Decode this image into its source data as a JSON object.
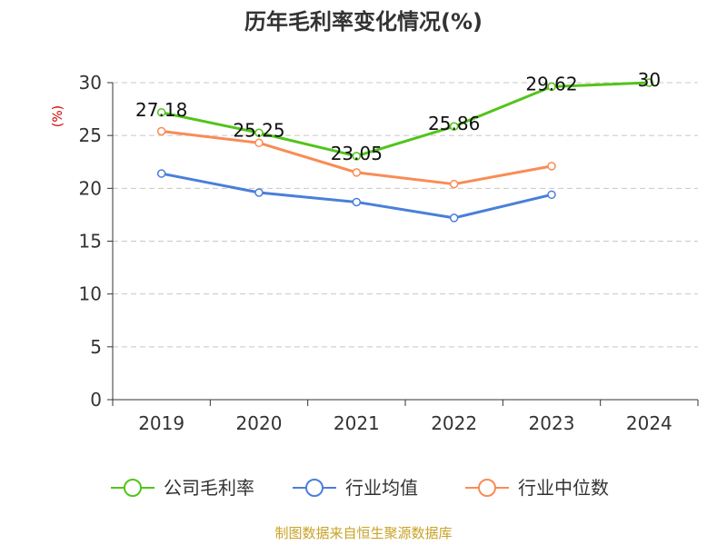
{
  "chart_data": {
    "type": "line",
    "title": "历年毛利率变化情况(%)",
    "ylabel": "(%)",
    "categories": [
      "2019",
      "2020",
      "2021",
      "2022",
      "2023",
      "2024"
    ],
    "ylim": [
      0,
      30
    ],
    "yticks": [
      0,
      5,
      10,
      15,
      20,
      25,
      30
    ],
    "grid": true,
    "legend_position": "bottom",
    "series": [
      {
        "name": "公司毛利率",
        "color": "#52c41a",
        "values": [
          27.18,
          25.25,
          23.05,
          25.86,
          29.62,
          30
        ],
        "data_labels": [
          "27.18",
          "25.25",
          "23.05",
          "25.86",
          "29.62",
          "30"
        ]
      },
      {
        "name": "行业均值",
        "color": "#4a7fd9",
        "values": [
          21.4,
          19.6,
          18.7,
          17.2,
          19.4,
          null
        ]
      },
      {
        "name": "行业中位数",
        "color": "#f98c55",
        "values": [
          25.4,
          24.3,
          21.5,
          20.4,
          22.1,
          null
        ]
      }
    ]
  },
  "source": "制图数据来自恒生聚源数据库"
}
